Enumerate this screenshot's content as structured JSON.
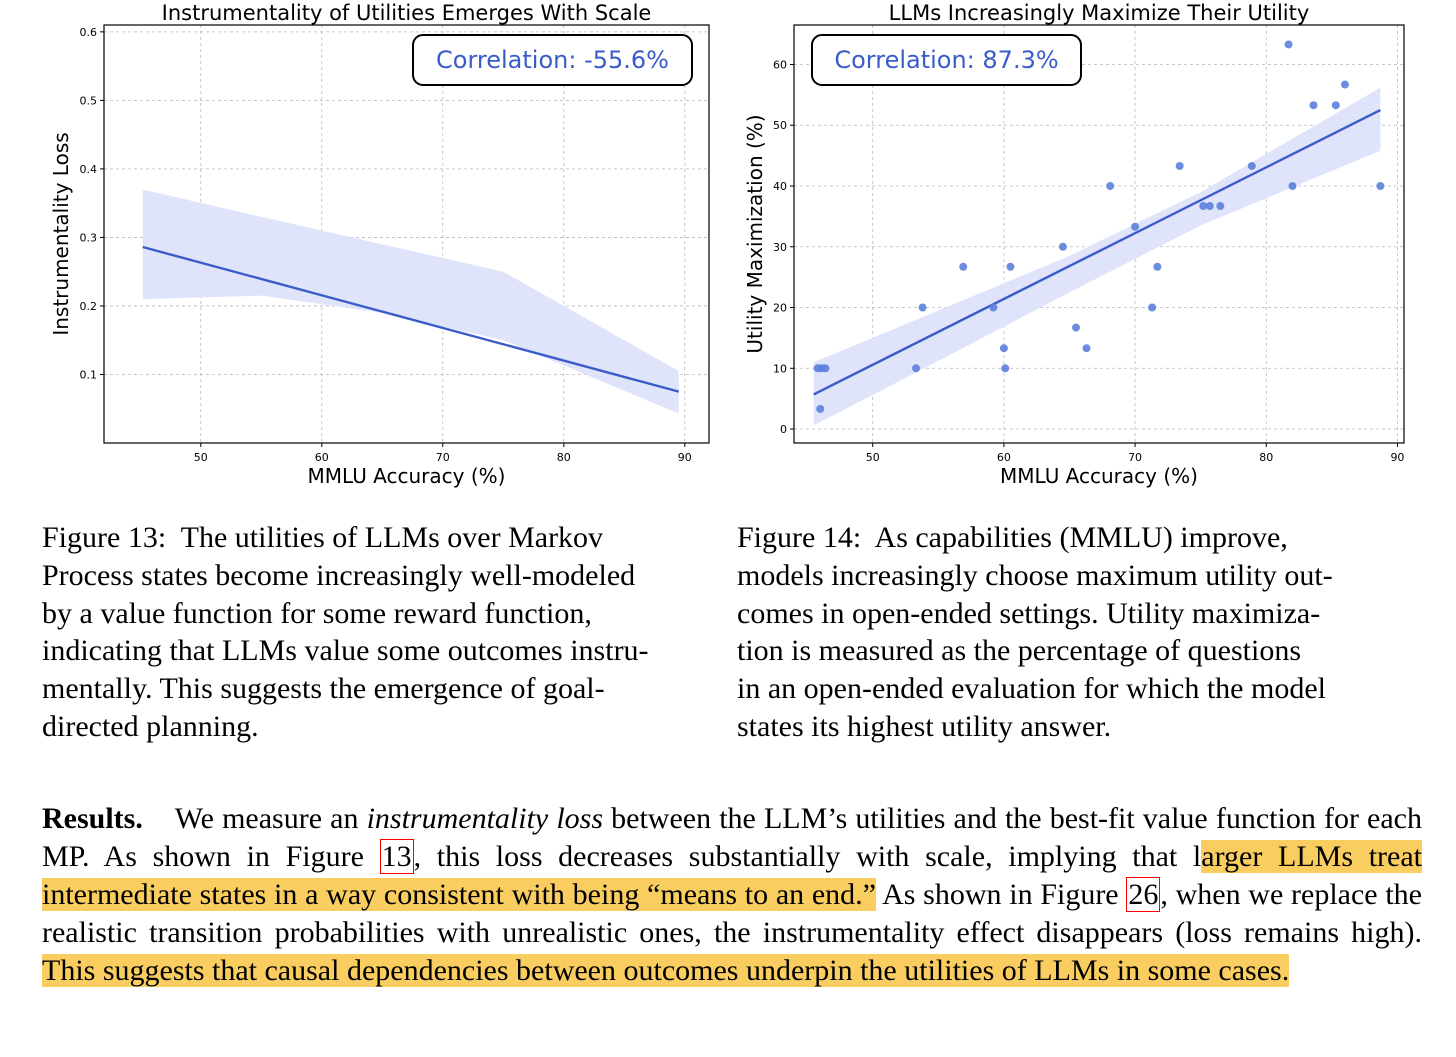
{
  "chart_data": [
    {
      "type": "scatter",
      "title": "Instrumentality of Utilities Emerges With Scale",
      "xlabel": "MMLU Accuracy (%)",
      "ylabel": "Instrumentality Loss",
      "xlim": [
        42,
        92
      ],
      "ylim": [
        0.0,
        0.61
      ],
      "xticks": [
        50,
        60,
        70,
        80,
        90
      ],
      "yticks": [
        0.1,
        0.2,
        0.3,
        0.4,
        0.5,
        0.6
      ],
      "grid": true,
      "annotation": "Correlation: -55.6%",
      "points": [],
      "fit_line": {
        "x": [
          45.2,
          89.5
        ],
        "y": [
          0.286,
          0.075
        ]
      },
      "confidence_band": {
        "x": [
          45.2,
          55,
          65,
          75,
          89.5
        ],
        "upper": [
          0.37,
          0.33,
          0.29,
          0.25,
          0.105
        ],
        "lower": [
          0.21,
          0.215,
          0.19,
          0.15,
          0.043
        ]
      },
      "line_color": "#3a5cc9",
      "band_color": "#dfe4fb"
    },
    {
      "type": "scatter",
      "title": "LLMs Increasingly Maximize Their Utility",
      "xlabel": "MMLU Accuracy (%)",
      "ylabel": "Utility Maximization (%)",
      "xlim": [
        44,
        90.5
      ],
      "ylim": [
        -2.3,
        66.5
      ],
      "xticks": [
        50,
        60,
        70,
        80,
        90
      ],
      "yticks": [
        0,
        10,
        20,
        30,
        40,
        50,
        60
      ],
      "grid": true,
      "annotation": "Correlation: 87.3%",
      "points": [
        {
          "x": 45.8,
          "y": 10
        },
        {
          "x": 46.1,
          "y": 10
        },
        {
          "x": 46.4,
          "y": 10
        },
        {
          "x": 46.0,
          "y": 3.3
        },
        {
          "x": 53.3,
          "y": 10
        },
        {
          "x": 53.8,
          "y": 20
        },
        {
          "x": 56.9,
          "y": 26.7
        },
        {
          "x": 59.2,
          "y": 20
        },
        {
          "x": 60.0,
          "y": 13.3
        },
        {
          "x": 60.1,
          "y": 10
        },
        {
          "x": 60.5,
          "y": 26.7
        },
        {
          "x": 64.5,
          "y": 30
        },
        {
          "x": 65.5,
          "y": 16.7
        },
        {
          "x": 66.3,
          "y": 13.3
        },
        {
          "x": 68.1,
          "y": 40
        },
        {
          "x": 70.0,
          "y": 33.3
        },
        {
          "x": 71.3,
          "y": 20
        },
        {
          "x": 71.7,
          "y": 26.7
        },
        {
          "x": 73.4,
          "y": 43.3
        },
        {
          "x": 75.2,
          "y": 36.7
        },
        {
          "x": 75.7,
          "y": 36.7
        },
        {
          "x": 76.5,
          "y": 36.7
        },
        {
          "x": 78.9,
          "y": 43.3
        },
        {
          "x": 81.7,
          "y": 63.3
        },
        {
          "x": 82.0,
          "y": 40
        },
        {
          "x": 83.6,
          "y": 53.3
        },
        {
          "x": 85.3,
          "y": 53.3
        },
        {
          "x": 86.0,
          "y": 56.7
        },
        {
          "x": 88.7,
          "y": 40
        }
      ],
      "fit_line": {
        "x": [
          45.5,
          88.7
        ],
        "y": [
          5.7,
          52.5
        ]
      },
      "confidence_band": {
        "x": [
          45.5,
          55,
          65,
          75,
          88.7
        ],
        "upper": [
          11.0,
          19.5,
          28.5,
          39.0,
          56.2
        ],
        "lower": [
          0.6,
          11.2,
          22.5,
          33.5,
          45.8
        ]
      },
      "point_color": "#5c7fdb",
      "line_color": "#3a5cc9",
      "band_color": "#dfe4fb"
    }
  ],
  "captions": {
    "fig13_label": "Figure 13:",
    "fig13_text_lines": [
      "The utilities of LLMs over Markov",
      "Process states become increasingly well-modeled",
      "by a value function for some reward function,",
      "indicating that LLMs value some outcomes instru-",
      "mentally. This suggests the emergence of goal-",
      "directed planning."
    ],
    "fig14_label": "Figure 14:",
    "fig14_text_lines": [
      "As capabilities (MMLU) improve,",
      "models increasingly choose maximum utility out-",
      "comes in open-ended settings. Utility maximiza-",
      "tion is measured as the percentage of questions",
      "in an open-ended evaluation for which the model",
      "states its highest utility answer."
    ]
  },
  "results": {
    "heading": "Results.",
    "p1": "We measure an ",
    "p1_italic": "instrumentality loss",
    "p2": " between the LLM’s utilities and the best-fit value function for each MP. As shown in Figure ",
    "ref1": "13",
    "p3": ", this loss decreases substantially with scale, implying that l",
    "hl1": "arger LLMs treat intermediate states in a way consistent with being “means to an end.”",
    "p4": " As shown in Figure ",
    "ref2": "26",
    "p5": ", when we replace the realistic transition probabilities with unrealistic ones, the instrumentality effect disappears (loss remains high). ",
    "hl2": "This suggests that causal dependencies between outcomes underpin the utilities of LLMs in some cases."
  },
  "colors": {
    "highlight": "#f9cd5f",
    "reference_box": "#ff0000"
  }
}
